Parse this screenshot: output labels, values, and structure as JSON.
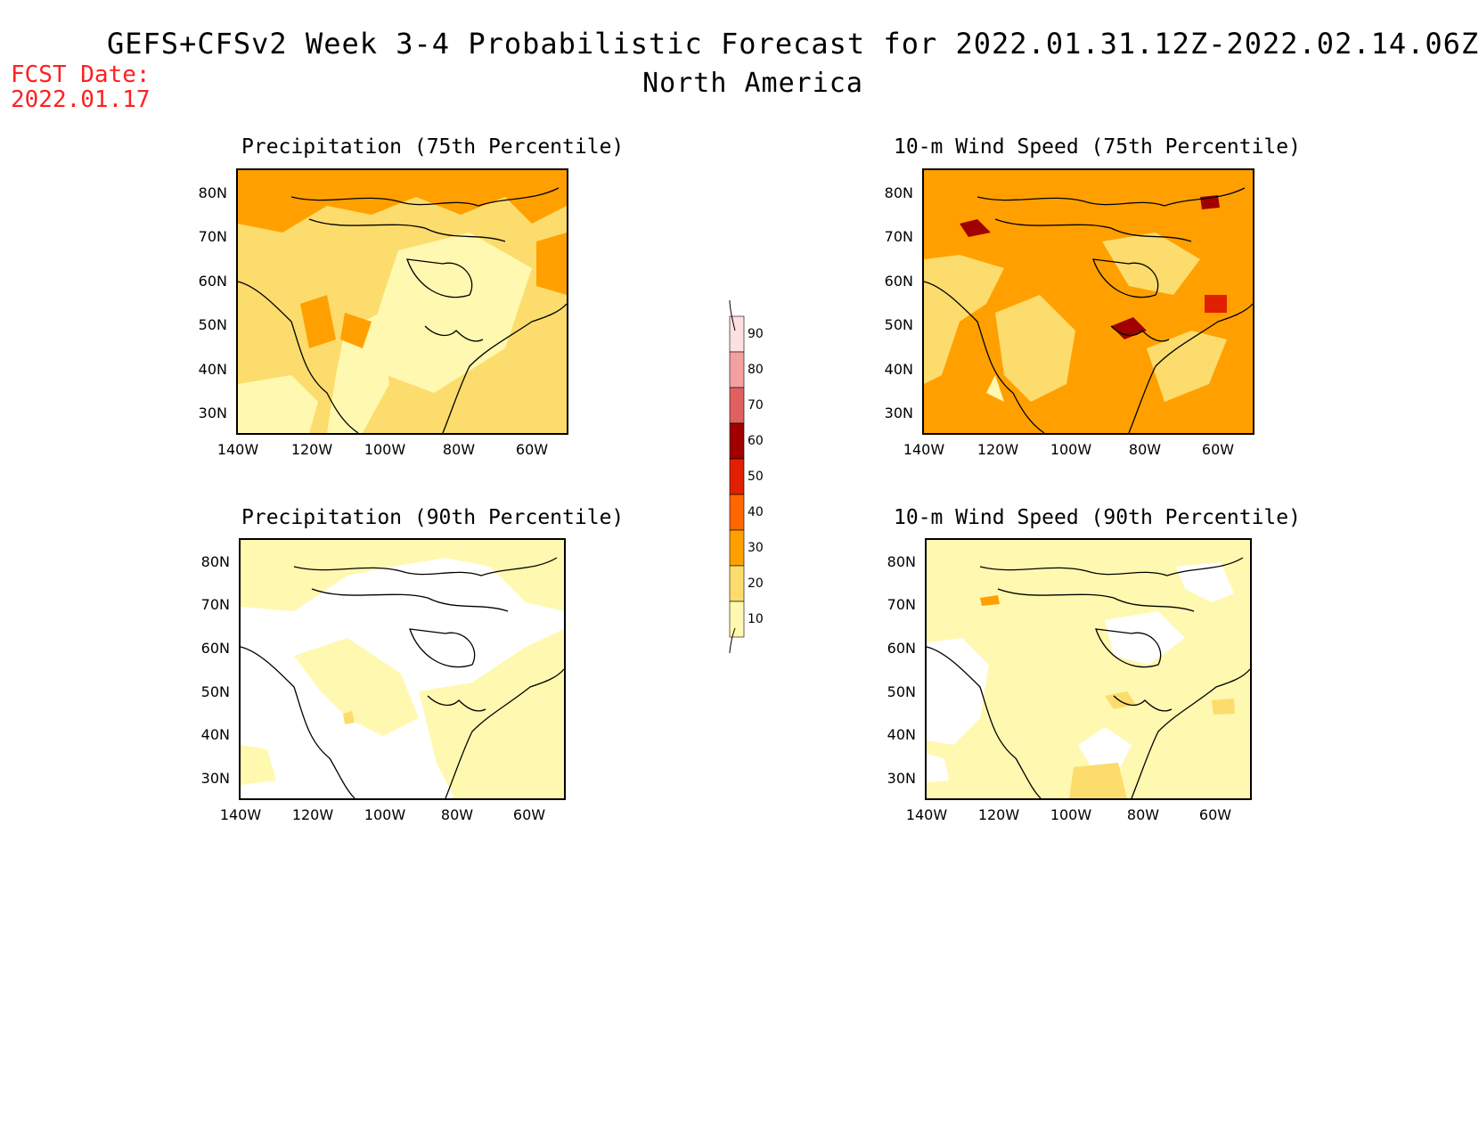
{
  "header": {
    "title": "GEFS+CFSv2 Week 3-4 Probabilistic Forecast for 2022.01.31.12Z-2022.02.14.06Z",
    "subtitle": "North America",
    "fcst_label": "FCST Date:",
    "fcst_date": "2022.01.17"
  },
  "panels": [
    {
      "title": "Precipitation (75th Percentile)",
      "level": "mid"
    },
    {
      "title": "10-m Wind Speed (75th Percentile)",
      "level": "high"
    },
    {
      "title": "Precipitation (90th Percentile)",
      "level": "low"
    },
    {
      "title": "10-m Wind Speed (90th Percentile)",
      "level": "lowmid"
    }
  ],
  "axes": {
    "lat_labels": [
      "80N",
      "70N",
      "60N",
      "50N",
      "40N",
      "30N"
    ],
    "lon_labels": [
      "140W",
      "120W",
      "100W",
      "80W",
      "60W"
    ]
  },
  "colorbar": {
    "levels": [
      "90",
      "80",
      "70",
      "60",
      "50",
      "40",
      "30",
      "20",
      "10"
    ],
    "colors": [
      "#fde0e0",
      "#f4a0a0",
      "#e06060",
      "#a00000",
      "#e02000",
      "#ff6600",
      "#ffa000",
      "#fcdc6c",
      "#fff8b0"
    ]
  }
}
